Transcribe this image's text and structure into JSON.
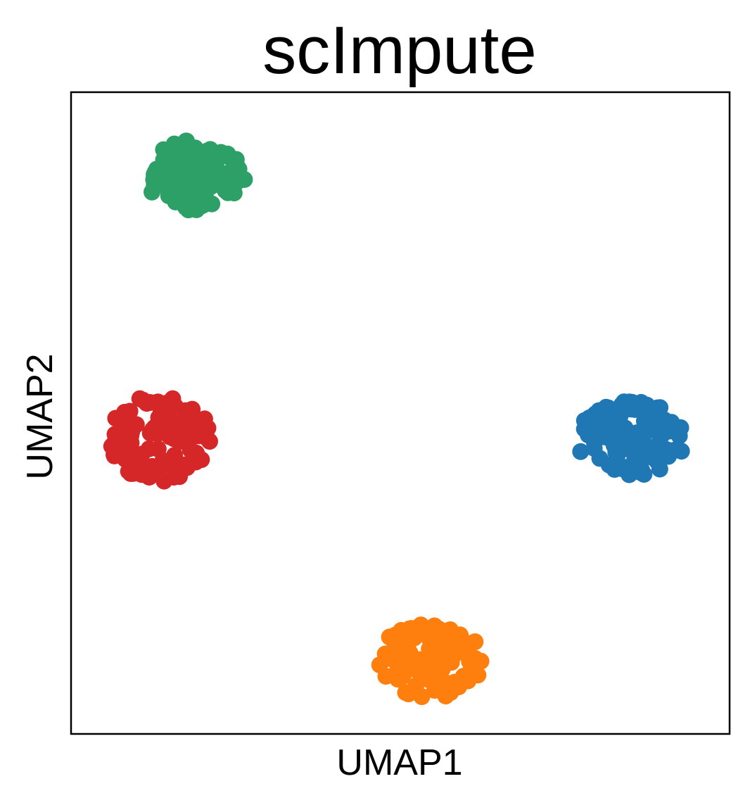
{
  "chart_data": {
    "type": "scatter",
    "title": "scImpute",
    "xlabel": "UMAP1",
    "ylabel": "UMAP2",
    "xlim": [
      0,
      10
    ],
    "ylim": [
      0,
      10
    ],
    "grid": false,
    "legend": "none",
    "ticks": "none",
    "series": [
      {
        "color": "#2ca066",
        "center": [
          1.9,
          8.7
        ],
        "spread": [
          0.8,
          0.55
        ],
        "count": 95,
        "seed": 11
      },
      {
        "color": "#d62728",
        "center": [
          1.35,
          4.6
        ],
        "spread": [
          0.78,
          0.68
        ],
        "count": 110,
        "seed": 23
      },
      {
        "color": "#1f77b4",
        "center": [
          8.5,
          4.6
        ],
        "spread": [
          0.82,
          0.58
        ],
        "count": 105,
        "seed": 37
      },
      {
        "color": "#ff7f0e",
        "center": [
          5.45,
          1.15
        ],
        "spread": [
          0.8,
          0.6
        ],
        "count": 105,
        "seed": 53
      }
    ]
  }
}
